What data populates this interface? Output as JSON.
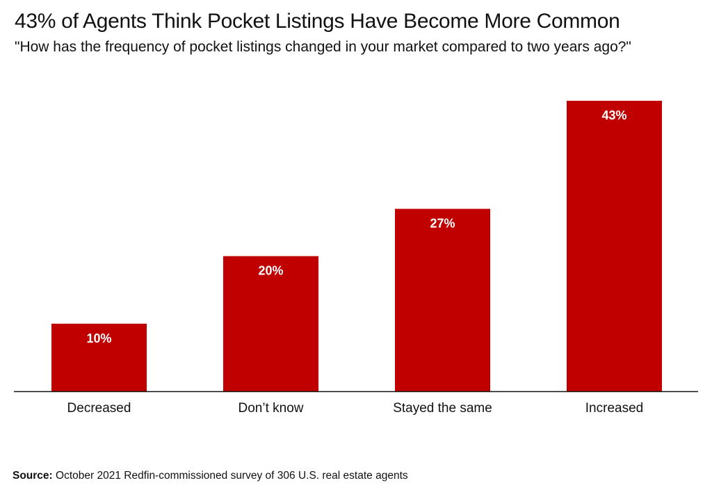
{
  "chart_data": {
    "type": "bar",
    "title": "43% of Agents Think Pocket Listings Have Become More Common",
    "subtitle": "\"How has the frequency of pocket listings changed in your market compared to two years ago?\"",
    "categories": [
      "Decreased",
      "Don’t know",
      "Stayed the same",
      "Increased"
    ],
    "values": [
      10,
      20,
      27,
      43
    ],
    "data_labels": [
      "10%",
      "20%",
      "27%",
      "43%"
    ],
    "ylim": [
      0,
      45
    ],
    "grid": false,
    "legend": "none",
    "bar_color": "#c00000",
    "label_color": "#ffffff"
  },
  "source": {
    "label": "Source:",
    "text": " October 2021 Redfin-commissioned survey of 306 U.S. real estate agents"
  }
}
